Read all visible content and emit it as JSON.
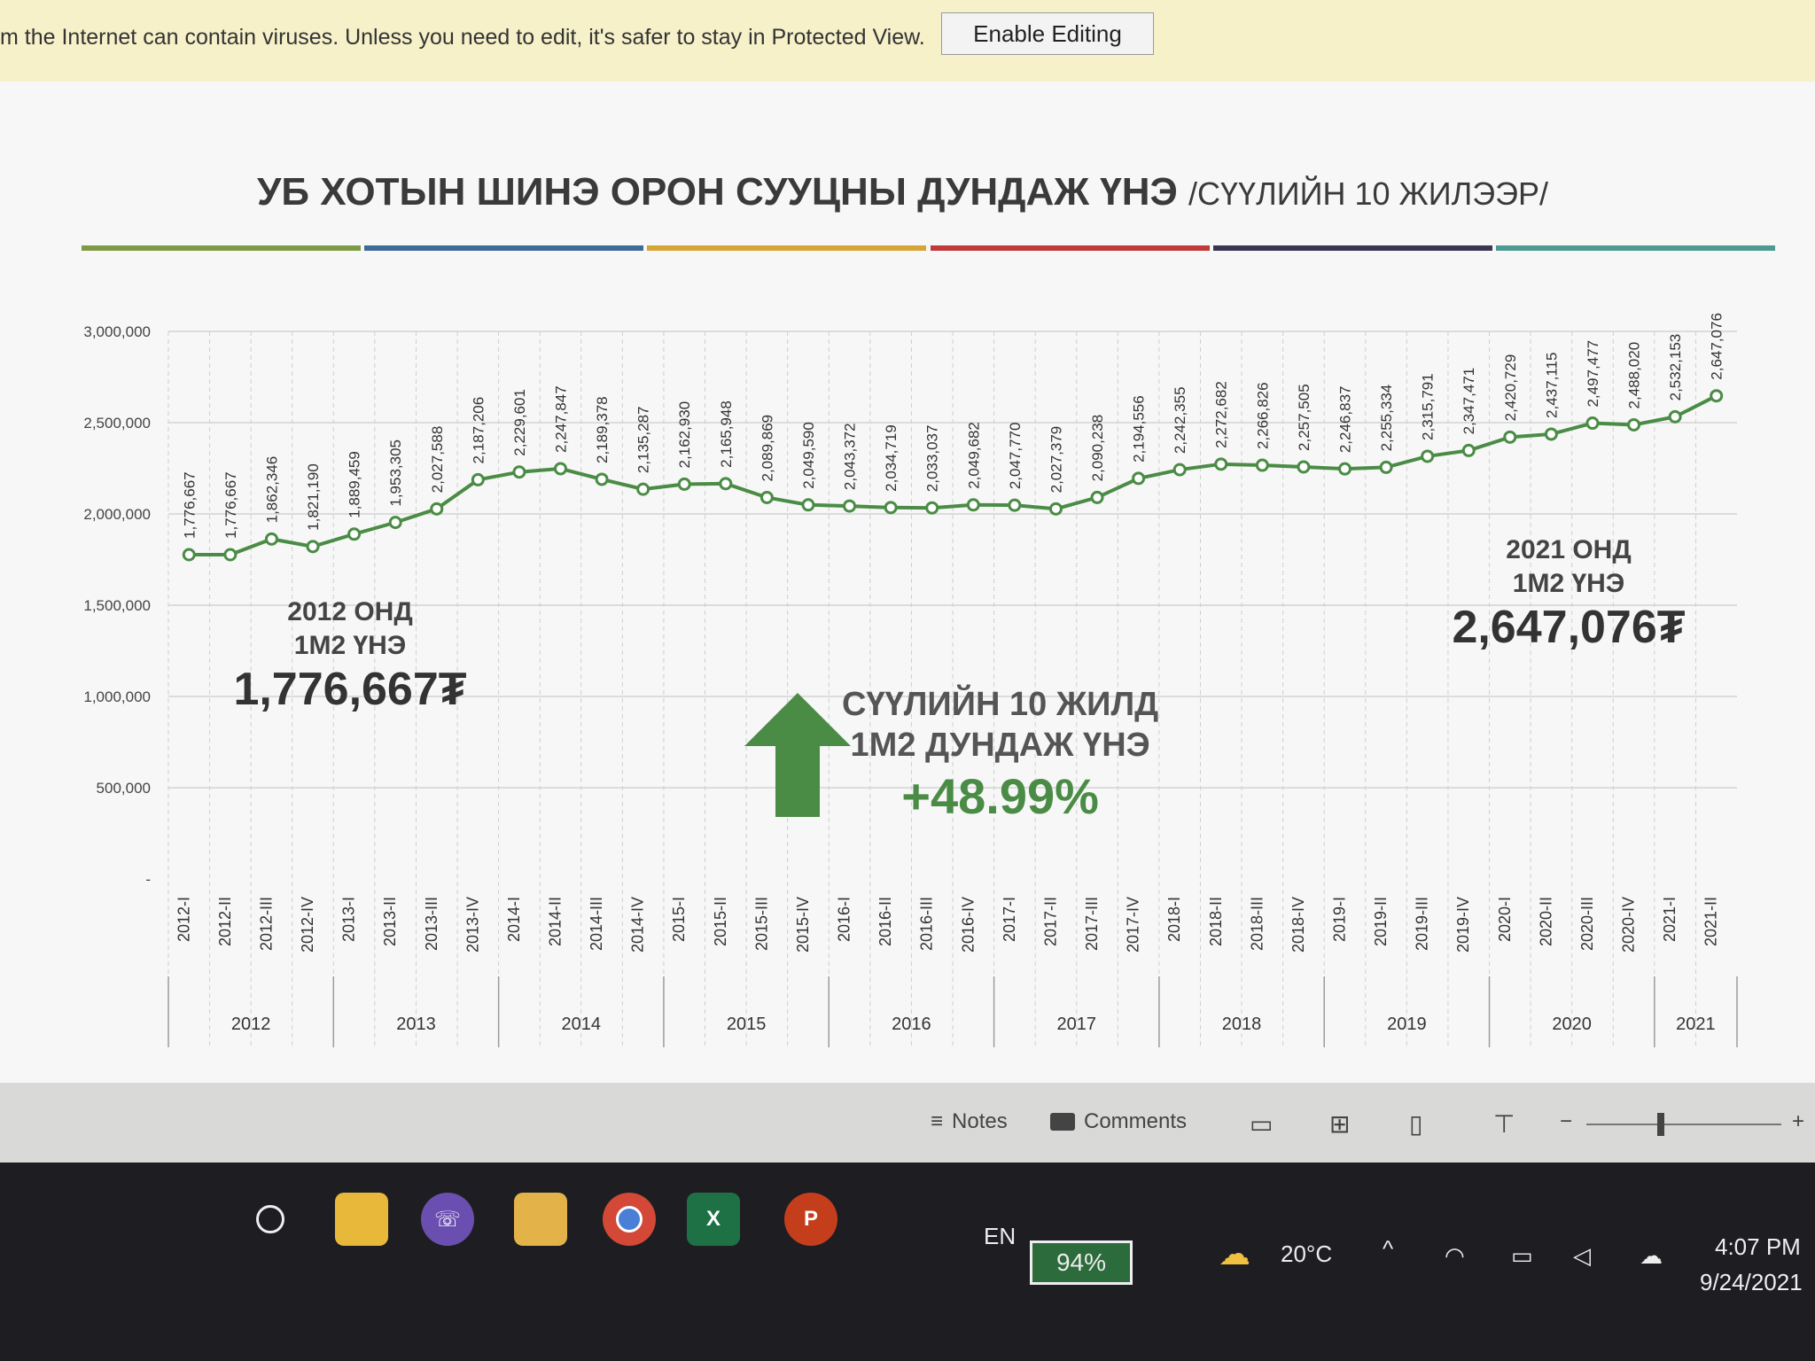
{
  "protected_view": {
    "message": "m the Internet can contain viruses. Unless you need to edit, it's safer to stay in Protected View.",
    "button": "Enable Editing"
  },
  "slide": {
    "title_main": "УБ ХОТЫН ШИНЭ ОРОН СУУЦНЫ ДУНДАЖ ҮНЭ",
    "title_sub": "/СҮҮЛИЙН 10 ЖИЛЭЭР/",
    "rule_colors": [
      "#7f9a45",
      "#3d6a96",
      "#d6a536",
      "#c0393b",
      "#3a3550",
      "#4d9a92"
    ],
    "ann_2012": {
      "label1": "2012 ОНД",
      "label2": "1М2 ҮНЭ",
      "value": "1,776,667₮"
    },
    "ann_2021": {
      "label1": "2021 ОНД",
      "label2": "1М2 ҮНЭ",
      "value": "2,647,076₮"
    },
    "center": {
      "label1": "СҮҮЛИЙН 10 ЖИЛД",
      "label2": "1М2 ДУНДАЖ ҮНЭ",
      "pct": "+48.99%"
    }
  },
  "chart_data": {
    "type": "line",
    "ylim": [
      0,
      3000000
    ],
    "yticks": [
      "-",
      "500,000",
      "1,000,000",
      "1,500,000",
      "2,000,000",
      "2,500,000",
      "3,000,000"
    ],
    "categories": [
      "2012-I",
      "2012-II",
      "2012-III",
      "2012-IV",
      "2013-I",
      "2013-II",
      "2013-III",
      "2013-IV",
      "2014-I",
      "2014-II",
      "2014-III",
      "2014-IV",
      "2015-I",
      "2015-II",
      "2015-III",
      "2015-IV",
      "2016-I",
      "2016-II",
      "2016-III",
      "2016-IV",
      "2017-I",
      "2017-II",
      "2017-III",
      "2017-IV",
      "2018-I",
      "2018-II",
      "2018-III",
      "2018-IV",
      "2019-I",
      "2019-II",
      "2019-III",
      "2019-IV",
      "2020-I",
      "2020-II",
      "2020-III",
      "2020-IV",
      "2021-I",
      "2021-II"
    ],
    "years": [
      "2012",
      "2013",
      "2014",
      "2015",
      "2016",
      "2017",
      "2018",
      "2019",
      "2020",
      "2021"
    ],
    "values": [
      1776667,
      1776667,
      1862346,
      1821190,
      1889459,
      1953305,
      2027588,
      2187206,
      2229601,
      2247847,
      2189378,
      2135287,
      2162930,
      2165948,
      2089869,
      2049590,
      2043372,
      2034719,
      2033037,
      2049682,
      2047770,
      2027379,
      2090238,
      2194556,
      2242355,
      2272682,
      2266826,
      2257505,
      2246837,
      2255334,
      2315791,
      2347471,
      2420729,
      2437115,
      2497477,
      2488020,
      2532153,
      2647076
    ],
    "labels": [
      "1,776,667",
      "1,776,667",
      "1,862,346",
      "1,821,190",
      "1,889,459",
      "1,953,305",
      "2,027,588",
      "2,187,206",
      "2,229,601",
      "2,247,847",
      "2,189,378",
      "2,135,287",
      "2,162,930",
      "2,165,948",
      "2,089,869",
      "2,049,590",
      "2,043,372",
      "2,034,719",
      "2,033,037",
      "2,049,682",
      "2,047,770",
      "2,027,379",
      "2,090,238",
      "2,194,556",
      "2,242,355",
      "2,272,682",
      "2,266,826",
      "2,257,505",
      "2,246,837",
      "2,255,334",
      "2,315,791",
      "2,347,471",
      "2,420,729",
      "2,437,115",
      "2,497,477",
      "2,488,020",
      "2,532,153",
      "2,647,076"
    ],
    "line_color": "#4a8c45",
    "grid": true
  },
  "statusbar": {
    "notes": "Notes",
    "comments": "Comments"
  },
  "taskbar": {
    "apps": [
      "search-icon",
      "sticky-notes-icon",
      "viber-icon",
      "file-explorer-icon",
      "chrome-icon",
      "excel-icon",
      "powerpoint-icon"
    ],
    "excel_letter": "X",
    "ppt_letter": "P",
    "lang": "EN",
    "battery": "94%",
    "temp": "20°C",
    "time": "4:07 PM",
    "date": "9/24/2021"
  }
}
